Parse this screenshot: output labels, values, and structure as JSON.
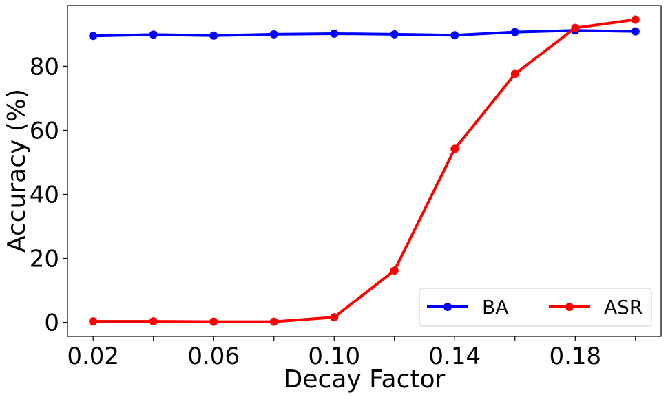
{
  "chart_data": {
    "type": "line",
    "xlabel": "Decay Factor",
    "ylabel": "Accuracy (%)",
    "x": [
      0.02,
      0.04,
      0.06,
      0.08,
      0.1,
      0.12,
      0.14,
      0.16,
      0.18,
      0.2
    ],
    "xticks": [
      0.02,
      0.04,
      0.06,
      0.08,
      0.1,
      0.12,
      0.14,
      0.16,
      0.18,
      0.2
    ],
    "xtick_labels": [
      "0.02",
      "",
      "0.06",
      "",
      "0.10",
      "",
      "0.14",
      "",
      "0.18",
      ""
    ],
    "yticks": [
      0,
      20,
      40,
      60,
      80
    ],
    "ytick_labels": [
      "0",
      "20",
      "40",
      "60",
      "80"
    ],
    "xlim": [
      0.0115,
      0.2085
    ],
    "ylim": [
      -4.4,
      99
    ],
    "grid": false,
    "legend_position": "bottom-right",
    "series": [
      {
        "name": "BA",
        "color": "#0000ff",
        "values": [
          89.5,
          89.9,
          89.6,
          90.0,
          90.2,
          90.0,
          89.7,
          90.7,
          91.2,
          90.9
        ]
      },
      {
        "name": "ASR",
        "color": "#ff0000",
        "values": [
          0.3,
          0.3,
          0.2,
          0.2,
          1.6,
          16.2,
          54.2,
          77.6,
          92.0,
          94.6
        ]
      }
    ]
  }
}
